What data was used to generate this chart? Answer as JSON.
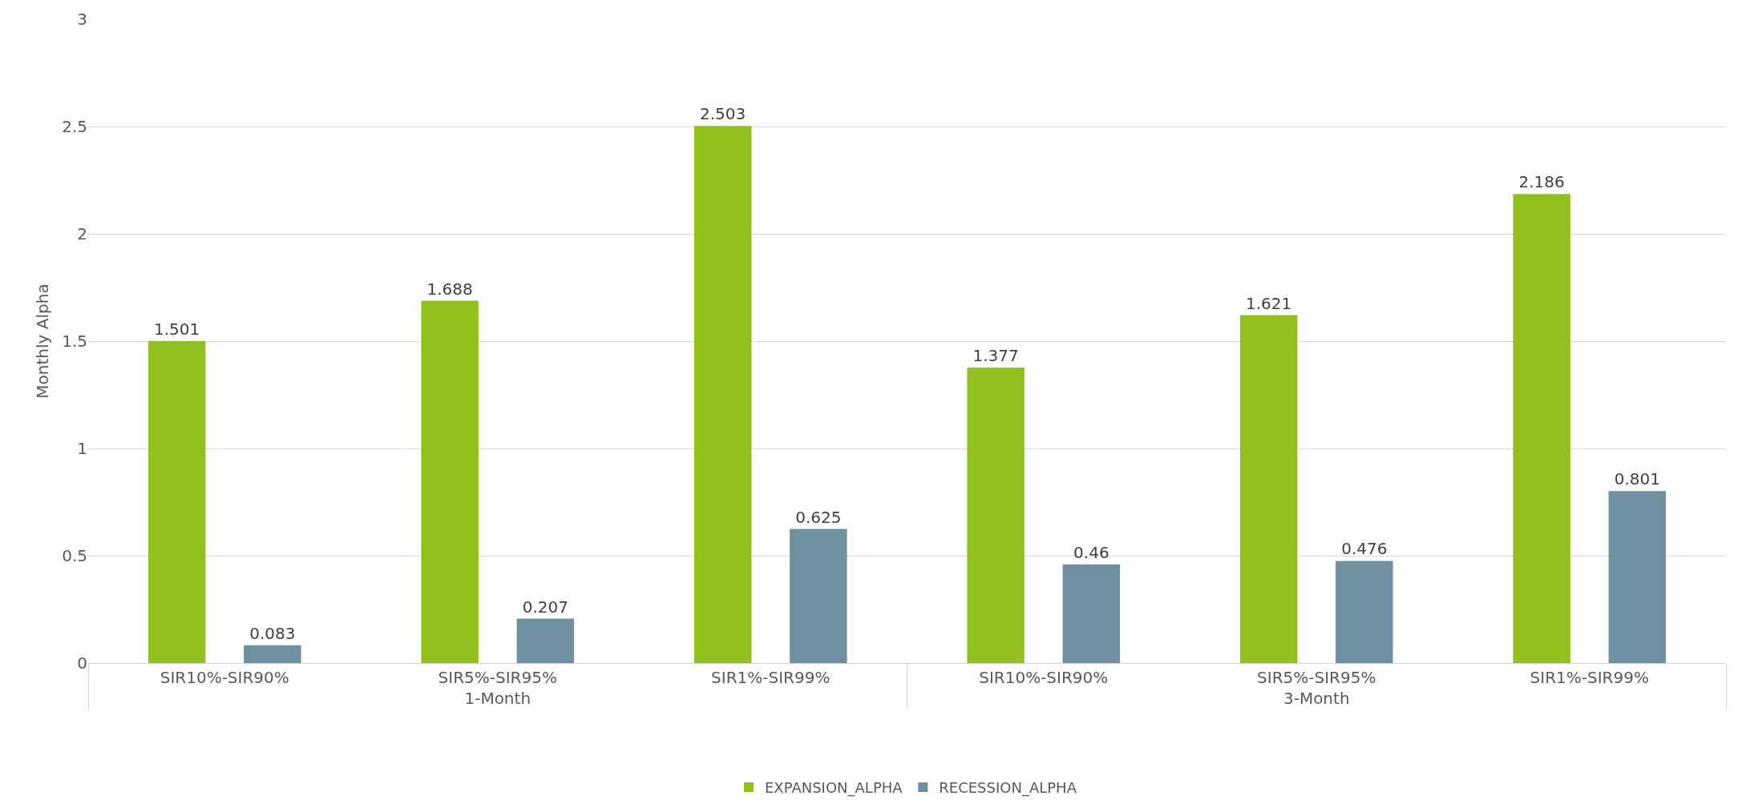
{
  "chart_data": {
    "type": "bar",
    "categories": [
      "SIR10%-SIR90%",
      "SIR5%-SIR95%",
      "SIR1%-SIR99%",
      "SIR10%-SIR90%",
      "SIR5%-SIR95%",
      "SIR1%-SIR99%"
    ],
    "annotations": [
      "1-Month",
      "3-Month"
    ],
    "series": [
      {
        "name": "EXPANSION_ALPHA",
        "color": "#92c01f",
        "values": [
          1.501,
          1.688,
          2.503,
          1.377,
          1.621,
          2.186
        ]
      },
      {
        "name": "RECESSION_ALPHA",
        "color": "#6f909f",
        "values": [
          0.083,
          0.207,
          0.625,
          0.46,
          0.476,
          0.801
        ]
      }
    ],
    "ylabel": "Monthly Alpha",
    "ylim": [
      0,
      3
    ],
    "yticks": [
      0,
      0.5,
      1,
      1.5,
      2,
      2.5,
      3
    ],
    "grid": "y",
    "legend": "bottom",
    "data_labels": true
  }
}
